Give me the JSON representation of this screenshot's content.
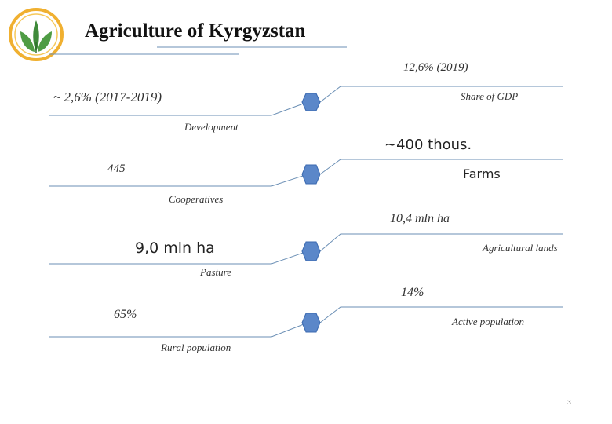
{
  "title": "Agriculture of Kyrgyzstan",
  "colors": {
    "hexagon_fill": "#5b87c9",
    "hexagon_stroke": "#3b6ab0",
    "line": "#6b8fb5",
    "logo_ring": "#f0b030",
    "logo_leaf": "#3f8a3a"
  },
  "rows": [
    {
      "left_value": "~ 2,6% (2017-2019)",
      "left_label": "Development",
      "right_value": "12,6% (2019)",
      "right_label": "Share of GDP"
    },
    {
      "left_value": "445",
      "left_label": "Cooperatives",
      "right_value": "~400 thous.",
      "right_label": "Farms"
    },
    {
      "left_value": "9,0 mln ha",
      "left_label": "Pasture",
      "right_value": "10,4 mln ha",
      "right_label": "Agricultural lands"
    },
    {
      "left_value": "65%",
      "left_label": "Rural population",
      "right_value": "14%",
      "right_label": "Active population"
    }
  ],
  "page_number": "3"
}
